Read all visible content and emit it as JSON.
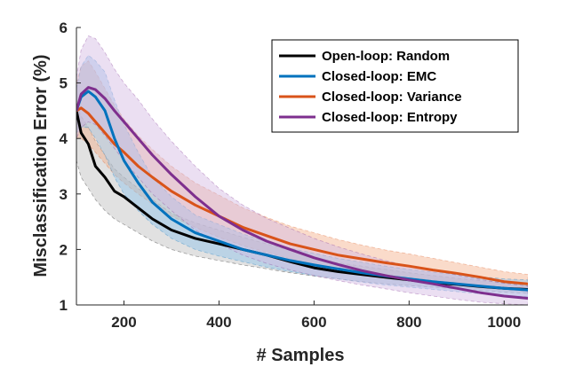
{
  "chart_data": {
    "type": "line",
    "title": "",
    "xlabel": "# Samples",
    "ylabel": "Misclassification Error (%)",
    "xlim": [
      100,
      1050
    ],
    "ylim": [
      1,
      6
    ],
    "xticks": [
      200,
      400,
      600,
      800,
      1000
    ],
    "yticks": [
      1,
      2,
      3,
      4,
      5,
      6
    ],
    "xtick_labels": [
      "200",
      "400",
      "600",
      "800",
      "1000"
    ],
    "ytick_labels": [
      "1",
      "2",
      "3",
      "4",
      "5",
      "6"
    ],
    "legend_position": "top-right",
    "series": [
      {
        "name": "Open-loop: Random",
        "color": "#000000",
        "band_color": "#bdbdbd",
        "x": [
          100,
          110,
          125,
          140,
          160,
          180,
          200,
          230,
          260,
          300,
          350,
          400,
          450,
          500,
          550,
          600,
          650,
          700,
          750,
          800,
          850,
          900,
          950,
          1000,
          1050
        ],
        "y": [
          4.5,
          4.1,
          3.9,
          3.5,
          3.3,
          3.05,
          2.95,
          2.75,
          2.55,
          2.35,
          2.2,
          2.1,
          2.0,
          1.9,
          1.78,
          1.67,
          1.6,
          1.55,
          1.5,
          1.45,
          1.4,
          1.37,
          1.33,
          1.3,
          1.28
        ],
        "lower": [
          3.6,
          3.3,
          3.1,
          2.9,
          2.7,
          2.55,
          2.45,
          2.3,
          2.15,
          2.0,
          1.88,
          1.8,
          1.72,
          1.65,
          1.58,
          1.52,
          1.47,
          1.42,
          1.38,
          1.35,
          1.32,
          1.29,
          1.26,
          1.23,
          1.21
        ],
        "upper": [
          4.6,
          4.4,
          4.2,
          3.95,
          3.7,
          3.45,
          3.3,
          3.1,
          2.9,
          2.65,
          2.48,
          2.35,
          2.22,
          2.1,
          1.98,
          1.85,
          1.76,
          1.7,
          1.64,
          1.58,
          1.53,
          1.48,
          1.44,
          1.4,
          1.37
        ]
      },
      {
        "name": "Closed-loop: EMC",
        "color": "#0072BD",
        "band_color": "#8fc3ec",
        "x": [
          100,
          110,
          125,
          140,
          160,
          180,
          200,
          230,
          260,
          300,
          350,
          400,
          450,
          500,
          550,
          600,
          650,
          700,
          750,
          800,
          850,
          900,
          950,
          1000,
          1050
        ],
        "y": [
          4.5,
          4.75,
          4.85,
          4.75,
          4.5,
          4.0,
          3.6,
          3.2,
          2.85,
          2.55,
          2.3,
          2.15,
          2.0,
          1.9,
          1.8,
          1.72,
          1.65,
          1.58,
          1.52,
          1.47,
          1.42,
          1.38,
          1.34,
          1.3,
          1.27
        ],
        "lower": [
          4.1,
          4.2,
          4.2,
          4.0,
          3.7,
          3.3,
          3.0,
          2.7,
          2.45,
          2.2,
          2.0,
          1.88,
          1.78,
          1.68,
          1.6,
          1.53,
          1.47,
          1.41,
          1.36,
          1.32,
          1.28,
          1.24,
          1.2,
          1.17,
          1.15
        ],
        "upper": [
          4.9,
          5.3,
          5.5,
          5.4,
          5.2,
          4.7,
          4.25,
          3.75,
          3.3,
          2.95,
          2.62,
          2.45,
          2.28,
          2.14,
          2.02,
          1.93,
          1.84,
          1.77,
          1.7,
          1.64,
          1.59,
          1.55,
          1.51,
          1.47,
          1.45
        ]
      },
      {
        "name": "Closed-loop: Variance",
        "color": "#D95319",
        "band_color": "#f3b08a",
        "x": [
          100,
          110,
          125,
          140,
          160,
          180,
          200,
          230,
          260,
          300,
          350,
          400,
          450,
          500,
          550,
          600,
          650,
          700,
          750,
          800,
          850,
          900,
          950,
          1000,
          1050
        ],
        "y": [
          4.5,
          4.55,
          4.45,
          4.3,
          4.1,
          3.9,
          3.75,
          3.5,
          3.3,
          3.05,
          2.8,
          2.6,
          2.4,
          2.25,
          2.1,
          2.0,
          1.9,
          1.83,
          1.76,
          1.7,
          1.63,
          1.57,
          1.5,
          1.42,
          1.38
        ],
        "lower": [
          4.0,
          4.0,
          3.9,
          3.75,
          3.55,
          3.35,
          3.2,
          3.0,
          2.82,
          2.6,
          2.4,
          2.22,
          2.07,
          1.95,
          1.83,
          1.74,
          1.66,
          1.6,
          1.54,
          1.5,
          1.45,
          1.4,
          1.34,
          1.28,
          1.24
        ],
        "upper": [
          5.0,
          5.3,
          5.4,
          5.2,
          4.9,
          4.6,
          4.35,
          4.05,
          3.8,
          3.5,
          3.2,
          2.98,
          2.75,
          2.58,
          2.42,
          2.3,
          2.18,
          2.08,
          1.99,
          1.92,
          1.84,
          1.76,
          1.68,
          1.6,
          1.55
        ]
      },
      {
        "name": "Closed-loop: Entropy",
        "color": "#7E2F8E",
        "band_color": "#d3b9e2",
        "x": [
          100,
          110,
          125,
          140,
          160,
          180,
          200,
          230,
          260,
          300,
          350,
          400,
          450,
          500,
          550,
          600,
          650,
          700,
          750,
          800,
          850,
          900,
          950,
          1000,
          1050
        ],
        "y": [
          4.5,
          4.8,
          4.92,
          4.88,
          4.72,
          4.5,
          4.3,
          4.0,
          3.7,
          3.35,
          2.95,
          2.6,
          2.35,
          2.15,
          2.0,
          1.85,
          1.73,
          1.62,
          1.53,
          1.45,
          1.38,
          1.3,
          1.22,
          1.16,
          1.12
        ],
        "lower": [
          4.0,
          4.2,
          4.3,
          4.25,
          4.05,
          3.82,
          3.6,
          3.3,
          3.0,
          2.7,
          2.35,
          2.1,
          1.9,
          1.75,
          1.63,
          1.53,
          1.44,
          1.36,
          1.29,
          1.22,
          1.16,
          1.1,
          1.05,
          1.02,
          1.0
        ],
        "upper": [
          5.1,
          5.6,
          5.85,
          5.8,
          5.55,
          5.25,
          5.0,
          4.7,
          4.35,
          3.95,
          3.5,
          3.1,
          2.8,
          2.56,
          2.38,
          2.2,
          2.05,
          1.92,
          1.8,
          1.7,
          1.62,
          1.54,
          1.46,
          1.39,
          1.34
        ]
      }
    ]
  }
}
